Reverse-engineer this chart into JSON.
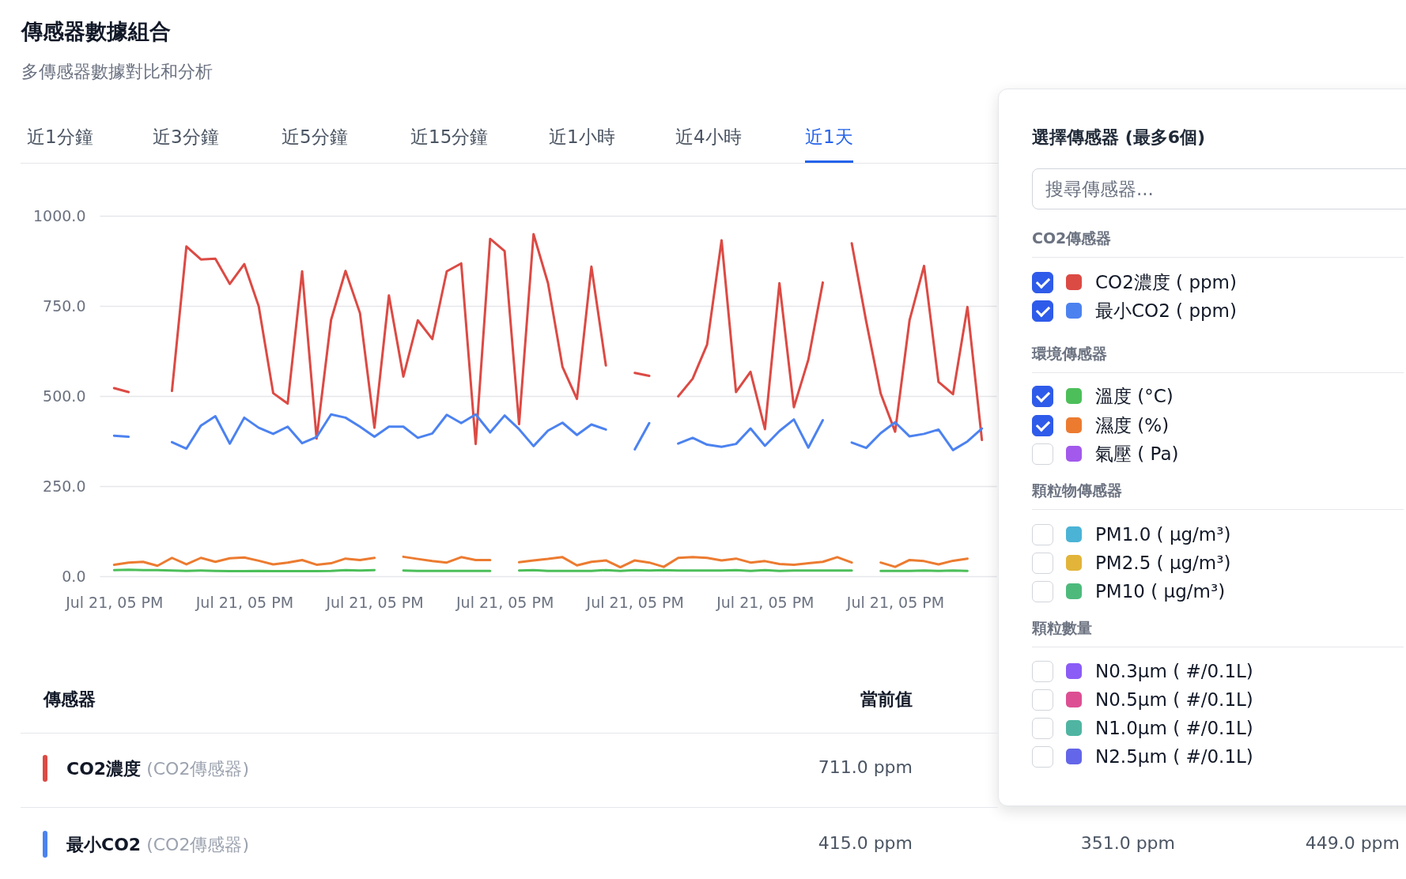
{
  "chart_data": {
    "type": "line",
    "title": "傳感器數據組合",
    "subtitle": "多傳感器數據對比和分析",
    "categories": [
      "Jul 21, 05 PM",
      null,
      null,
      null,
      null,
      null,
      null,
      null,
      null,
      "Jul 21, 05 PM",
      null,
      null,
      null,
      null,
      null,
      null,
      null,
      null,
      "Jul 21, 05 PM",
      null,
      null,
      null,
      null,
      null,
      null,
      null,
      null,
      "Jul 21, 05 PM",
      null,
      null,
      null,
      null,
      null,
      null,
      null,
      null,
      "Jul 21, 05 PM",
      null,
      null,
      null,
      null,
      null,
      null,
      null,
      null,
      "Jul 21, 05 PM",
      null,
      null,
      null,
      null,
      null,
      null,
      null,
      null,
      "Jul 21, 05 PM",
      null,
      null,
      null,
      null,
      null,
      null
    ],
    "series": [
      {
        "name": "CO2濃度 ( ppm)",
        "color": "#dc4a44",
        "values": [
          522,
          511,
          null,
          null,
          514,
          915,
          879,
          881,
          811,
          866,
          749,
          508,
          479,
          846,
          382,
          711,
          847,
          730,
          412,
          779,
          554,
          710,
          658,
          846,
          868,
          367,
          936,
          902,
          422,
          949,
          813,
          581,
          492,
          859,
          585,
          null,
          564,
          556,
          null,
          499,
          548,
          643,
          932,
          511,
          567,
          408,
          813,
          469,
          601,
          815,
          null,
          924,
          707,
          507,
          401,
          711,
          861,
          539,
          505,
          747,
          378
        ]
      },
      {
        "name": "最小CO2 ( ppm)",
        "color": "#4c82f0",
        "values": [
          390,
          387,
          null,
          null,
          372,
          354,
          418,
          444,
          368,
          440,
          412,
          395,
          415,
          369,
          386,
          449,
          440,
          415,
          387,
          415,
          415,
          384,
          396,
          448,
          425,
          449,
          399,
          446,
          408,
          361,
          404,
          426,
          392,
          421,
          407,
          null,
          352,
          425,
          null,
          368,
          384,
          365,
          359,
          367,
          410,
          362,
          403,
          435,
          357,
          433,
          null,
          371,
          356,
          397,
          427,
          388,
          395,
          407,
          350,
          374,
          410
        ]
      },
      {
        "name": "溫度 (°C)",
        "color": "#4cbf5a",
        "values": [
          17,
          18,
          17,
          17,
          16,
          15,
          16,
          15,
          14,
          14,
          15,
          14,
          14,
          14,
          14,
          15,
          17,
          16,
          17,
          null,
          16,
          15,
          15,
          15,
          15,
          15,
          15,
          null,
          16,
          17,
          15,
          15,
          15,
          15,
          17,
          15,
          17,
          16,
          17,
          16,
          16,
          16,
          16,
          17,
          15,
          17,
          15,
          16,
          16,
          16,
          16,
          16,
          null,
          15,
          15,
          15,
          16,
          15,
          16,
          15,
          null
        ]
      },
      {
        "name": "濕度 (%)",
        "color": "#ec7b30",
        "values": [
          32,
          38,
          40,
          29,
          51,
          33,
          51,
          40,
          50,
          52,
          43,
          33,
          38,
          45,
          32,
          36,
          49,
          45,
          51,
          null,
          54,
          48,
          42,
          38,
          53,
          45,
          45,
          null,
          39,
          44,
          48,
          53,
          30,
          40,
          44,
          25,
          44,
          38,
          26,
          51,
          53,
          51,
          44,
          49,
          38,
          42,
          34,
          32,
          36,
          40,
          53,
          38,
          null,
          38,
          26,
          45,
          42,
          33,
          43,
          49,
          null
        ]
      }
    ],
    "ylim": [
      0,
      1000
    ],
    "yticks": [
      {
        "value": 0,
        "label": "0.0"
      },
      {
        "value": 250,
        "label": "250.0"
      },
      {
        "value": 500,
        "label": "500.0"
      },
      {
        "value": 750,
        "label": "750.0"
      },
      {
        "value": 1000,
        "label": "1000.0"
      }
    ],
    "grid": "y",
    "legend": "right",
    "marker": "none",
    "line_style": "solid",
    "annotations": [
      "近1分鐘",
      "近3分鐘",
      "近5分鐘",
      "近15分鐘",
      "近1小時",
      "近4小時",
      "近1天",
      "選擇傳感器 (最多6個)",
      "搜尋傳感器...",
      "CO2傳感器",
      "環境傳感器",
      "氣壓 ( Pa)",
      "顆粒物傳感器",
      "PM1.0 ( µg/m³)",
      "PM2.5 ( µg/m³)",
      "PM10 ( µg/m³)",
      "顆粒數量",
      "N0.3µm ( #/0.1L)",
      "N0.5µm ( #/0.1L)",
      "N1.0µm ( #/0.1L)",
      "N2.5µm ( #/0.1L)",
      "傳感器",
      "當前值",
      "CO2濃度",
      "(CO2傳感器)",
      "711.0 ppm",
      "最小CO2",
      "(CO2傳感器)",
      "415.0 ppm",
      "351.0 ppm",
      "449.0 ppm"
    ]
  }
}
